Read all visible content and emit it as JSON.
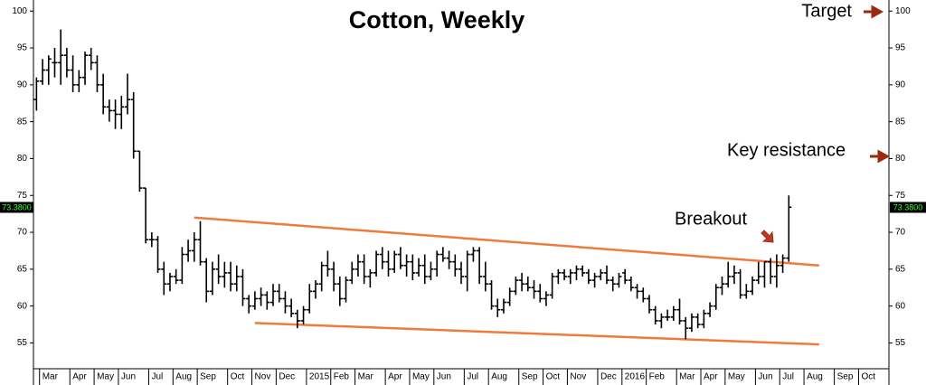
{
  "chart_data": {
    "type": "ohlc",
    "title": "Cotton, Weekly",
    "categories": [
      null,
      "Mar",
      null,
      null,
      null,
      null,
      "Apr",
      null,
      null,
      null,
      "May",
      null,
      null,
      null,
      "Jun",
      null,
      null,
      null,
      null,
      "Jul",
      null,
      null,
      null,
      "Aug",
      null,
      null,
      null,
      "Sep",
      null,
      null,
      null,
      null,
      "Oct",
      null,
      null,
      null,
      "Nov",
      null,
      null,
      null,
      "Dec",
      null,
      null,
      null,
      null,
      "2015",
      null,
      null,
      null,
      "Feb",
      null,
      null,
      null,
      "Mar",
      null,
      null,
      null,
      null,
      "Apr",
      null,
      null,
      null,
      "May",
      null,
      null,
      null,
      "Jun",
      null,
      null,
      null,
      null,
      "Jul",
      null,
      null,
      null,
      "Aug",
      null,
      null,
      null,
      null,
      "Sep",
      null,
      null,
      null,
      "Oct",
      null,
      null,
      null,
      "Nov",
      null,
      null,
      null,
      null,
      "Dec",
      null,
      null,
      null,
      "2016",
      null,
      null,
      null,
      "Feb",
      null,
      null,
      null,
      null,
      "Mar",
      null,
      null,
      null,
      "Apr",
      null,
      null,
      null,
      "May",
      null,
      null,
      null,
      null,
      "Jun",
      null,
      null,
      null,
      "Jul",
      null,
      null,
      null,
      "Aug",
      null,
      null,
      null,
      null,
      "Sep",
      null,
      null,
      null,
      "Oct",
      null,
      null,
      null,
      null
    ],
    "open": [
      88,
      90.5,
      92,
      93,
      93,
      94,
      92,
      90,
      91,
      94,
      93,
      90,
      87,
      86.5,
      86,
      87,
      88,
      81,
      76,
      69,
      69,
      65,
      63,
      64,
      63.5,
      67,
      67.5,
      69,
      66,
      62,
      65,
      64,
      64.5,
      63,
      64,
      61,
      60,
      61,
      61.5,
      60.5,
      62,
      61,
      60,
      59,
      58,
      59.5,
      62,
      63,
      65.5,
      65,
      63,
      61,
      63.5,
      65,
      66,
      64,
      64.5,
      67,
      66,
      65,
      67,
      65.5,
      66,
      64.5,
      65.5,
      64,
      65,
      67,
      66.5,
      66,
      65,
      64,
      67,
      67.5,
      64,
      63,
      60,
      59.5,
      60.5,
      62,
      63.5,
      63,
      62.5,
      62,
      61,
      61.5,
      64,
      64.5,
      64,
      64.5,
      65,
      64.5,
      63.5,
      64,
      64.5,
      63.5,
      63,
      64.5,
      63.5,
      62.5,
      62,
      61,
      59.5,
      58,
      58.5,
      58.5,
      59.5,
      58,
      57,
      58.5,
      57.5,
      59,
      60,
      62.5,
      63,
      64,
      64.5,
      61.5,
      62,
      63.5,
      64,
      66,
      64,
      65.5,
      66.5,
      null,
      null,
      null,
      null,
      null,
      null,
      null,
      null,
      null,
      null,
      null,
      null,
      null,
      null,
      null,
      null
    ],
    "high": [
      91,
      93.5,
      94,
      95,
      97.5,
      95,
      94,
      92,
      94.5,
      95,
      94,
      91.5,
      88,
      88,
      88.5,
      91.5,
      89,
      81,
      76,
      70,
      69.5,
      66,
      64.5,
      65,
      68,
      69,
      70,
      71.5,
      66.5,
      66,
      67,
      66,
      66,
      65.5,
      65,
      61.5,
      62,
      62.5,
      62,
      63,
      63,
      62,
      61,
      59.5,
      60,
      63,
      63.5,
      66,
      67.5,
      66,
      64,
      64,
      66,
      67,
      67,
      65,
      67.5,
      68,
      67.5,
      67.5,
      68,
      67,
      67,
      66.5,
      67,
      66,
      67.5,
      68,
      67.5,
      67,
      66,
      67.5,
      68,
      68,
      66,
      63.5,
      61,
      61,
      62.5,
      64,
      64.5,
      64,
      63.5,
      63,
      62,
      64.5,
      65,
      65,
      65,
      65.5,
      65.5,
      65,
      64.5,
      65,
      65.5,
      64,
      64.5,
      65,
      64,
      63,
      62.5,
      61.5,
      60,
      59,
      59.5,
      60,
      61,
      58.5,
      59,
      59,
      59.5,
      60.5,
      63,
      64,
      66,
      65.5,
      65,
      63,
      64,
      66,
      66,
      66.5,
      67,
      67,
      75,
      null,
      null,
      null,
      null,
      null,
      null,
      null,
      null,
      null,
      null,
      null,
      null,
      null,
      null,
      null,
      null
    ],
    "low": [
      86.5,
      90,
      90,
      91,
      90,
      91,
      89,
      89,
      90,
      92,
      89,
      86,
      85,
      84,
      84,
      86,
      80,
      75.5,
      68.5,
      68,
      64.5,
      61.5,
      62,
      63,
      63,
      66,
      66,
      65.5,
      60.5,
      61.5,
      63,
      62.5,
      62,
      62,
      60,
      59,
      59.5,
      60,
      59.5,
      60,
      60.5,
      59,
      58.5,
      57,
      57.5,
      59,
      61,
      62,
      64,
      62,
      60,
      60.5,
      63,
      64,
      63,
      62.5,
      64,
      65,
      64,
      64.5,
      65,
      64,
      63.5,
      64,
      63,
      63.5,
      64,
      66,
      65,
      64,
      63,
      62,
      66,
      63,
      62,
      59.5,
      58.5,
      59,
      60,
      61.5,
      62,
      62,
      61,
      60.5,
      60,
      61,
      63,
      63.5,
      63,
      63.5,
      64,
      63,
      62.5,
      63.5,
      63,
      62,
      62.5,
      63,
      62,
      61,
      60.5,
      59,
      57.5,
      57,
      58,
      58,
      57.5,
      55.5,
      56.5,
      57,
      57,
      58.5,
      59.5,
      61.5,
      62.5,
      63,
      61,
      61,
      61.5,
      63,
      62.5,
      63,
      62.5,
      64.5,
      66,
      null,
      null,
      null,
      null,
      null,
      null,
      null,
      null,
      null,
      null,
      null,
      null,
      null,
      null,
      null,
      null
    ],
    "close": [
      90.5,
      92,
      93.5,
      93,
      94,
      92,
      90,
      91,
      94,
      93,
      90,
      87,
      86.5,
      86,
      87,
      88,
      81,
      76,
      69,
      69,
      65,
      63,
      64,
      63.5,
      67,
      67.5,
      69,
      66,
      62,
      65,
      64,
      64.5,
      63,
      64,
      61,
      60,
      61,
      61.5,
      60.5,
      62,
      61,
      60,
      59,
      58,
      59.5,
      62,
      63,
      65.5,
      65,
      63,
      61,
      63.5,
      65,
      66,
      64,
      64.5,
      67,
      66,
      65,
      67,
      65.5,
      66,
      64.5,
      65.5,
      64,
      65,
      67,
      66.5,
      66,
      65,
      64,
      67,
      67.5,
      64,
      63,
      60,
      59.5,
      60.5,
      62,
      63.5,
      63,
      62.5,
      62,
      61,
      61.5,
      64,
      64.5,
      64,
      64.5,
      65,
      64.5,
      63.5,
      64,
      64.5,
      63.5,
      63,
      64,
      63.5,
      62.5,
      62,
      61,
      59.5,
      58,
      58.5,
      58.5,
      59.5,
      58,
      57,
      58.5,
      57.5,
      59,
      60,
      62.5,
      63,
      64,
      64.5,
      61.5,
      62,
      63.5,
      64,
      66,
      64,
      65.5,
      66.5,
      73.4,
      null,
      null,
      null,
      null,
      null,
      null,
      null,
      null,
      null,
      null,
      null,
      null,
      null,
      null,
      null,
      null
    ],
    "color": "#000000",
    "ylim": [
      51.5,
      101.5
    ],
    "yticks": [
      55,
      60,
      65,
      70,
      75,
      80,
      85,
      90,
      95,
      100
    ],
    "grid": false,
    "last_price": {
      "value": 73.38,
      "label": "73.3800"
    },
    "trendlines": [
      {
        "x": [
          26,
          129
        ],
        "values": [
          72,
          65.5
        ],
        "color": "#f07a3c"
      },
      {
        "x": [
          36,
          129
        ],
        "values": [
          57.7,
          54.8
        ],
        "color": "#f07a3c"
      }
    ],
    "annotations": [
      "Target",
      "Key resistance",
      "Breakout"
    ]
  }
}
